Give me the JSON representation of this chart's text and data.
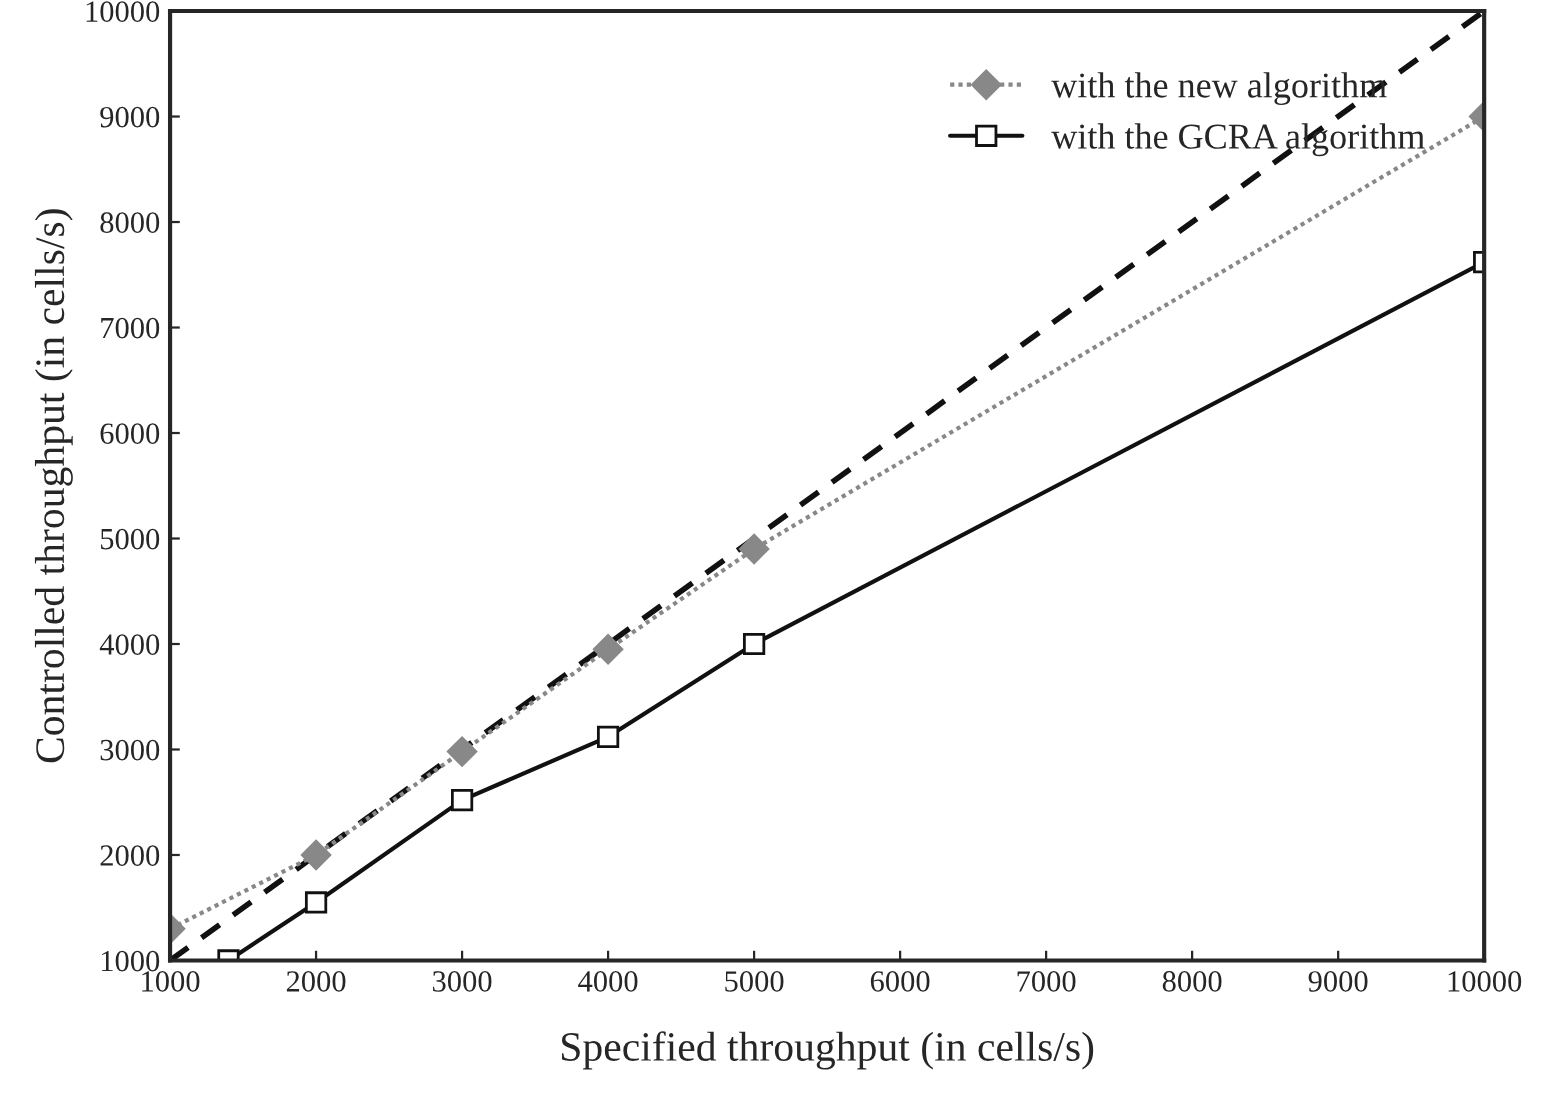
{
  "chart_data": {
    "type": "line",
    "xlabel": "Specified throughput (in cells/s)",
    "ylabel": "Controlled throughput (in cells/s)",
    "xlim": [
      1000,
      10000
    ],
    "ylim": [
      1000,
      10000
    ],
    "xticks": [
      1000,
      2000,
      3000,
      4000,
      5000,
      6000,
      7000,
      8000,
      9000,
      10000
    ],
    "yticks": [
      1000,
      2000,
      3000,
      4000,
      5000,
      6000,
      7000,
      8000,
      9000,
      10000
    ],
    "grid": false,
    "legend": "top right",
    "series": [
      {
        "color": "#111111",
        "x": [
          1000,
          10000
        ],
        "values": [
          1000,
          10000
        ],
        "line_style": "dashed",
        "marker": "none"
      },
      {
        "name": "with the new algorithm",
        "color": "#888888",
        "x": [
          1000,
          2000,
          3000,
          4000,
          5000,
          10000
        ],
        "values": [
          1300,
          2000,
          2980,
          3950,
          4900,
          9000
        ],
        "line_style": "dotted",
        "marker": "diamond"
      },
      {
        "name": "with the GCRA algorithm",
        "color": "#111111",
        "x": [
          1400,
          2000,
          3000,
          4000,
          5000,
          10000
        ],
        "values": [
          1000,
          1550,
          2520,
          3120,
          4000,
          7620
        ],
        "line_style": "solid",
        "marker": "square"
      }
    ]
  }
}
